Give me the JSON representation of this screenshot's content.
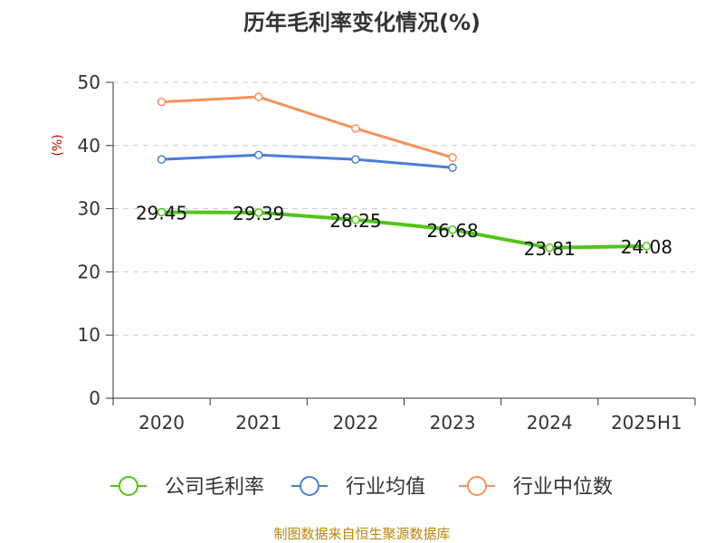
{
  "chart_data": {
    "type": "line",
    "title": "历年毛利率变化情况(%)",
    "ylabel": "(%)",
    "xlabel": "",
    "categories": [
      "2020",
      "2021",
      "2022",
      "2023",
      "2024",
      "2025H1"
    ],
    "ylim": [
      0,
      50
    ],
    "yticks": [
      0,
      10,
      20,
      30,
      40,
      50
    ],
    "grid": true,
    "legend_position": "bottom",
    "series": [
      {
        "name": "公司毛利率",
        "color": "#52c41a",
        "values": [
          29.45,
          29.39,
          28.25,
          26.68,
          23.81,
          24.08
        ],
        "labels": [
          "29.45",
          "29.39",
          "28.25",
          "26.68",
          "23.81",
          "24.08"
        ]
      },
      {
        "name": "行业均值",
        "color": "#4a7fd6",
        "values": [
          37.8,
          38.5,
          37.8,
          36.5,
          null,
          null
        ]
      },
      {
        "name": "行业中位数",
        "color": "#f4925e",
        "values": [
          46.9,
          47.7,
          42.7,
          38.1,
          null,
          null
        ]
      }
    ],
    "source": "制图数据来自恒生聚源数据库"
  }
}
